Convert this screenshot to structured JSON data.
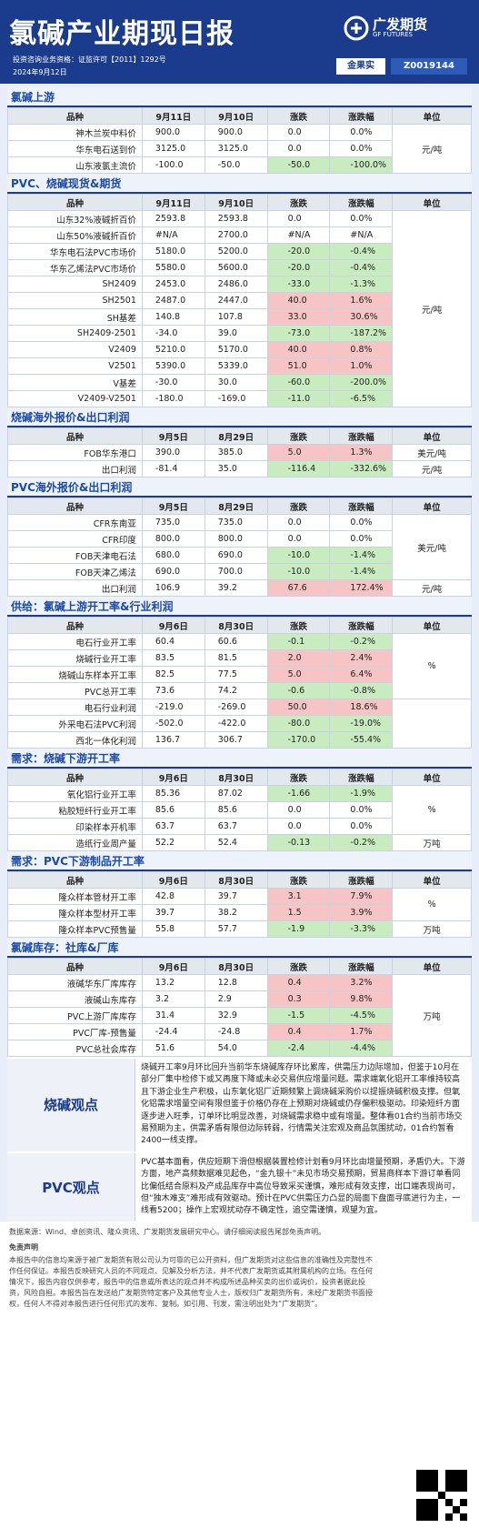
{
  "header": {
    "title": "氯碱产业期现日报",
    "logo_cn": "广发期货",
    "logo_en": "GF FUTURES",
    "license": "投资咨询业务资格：证监许可【2011】1292号",
    "date": "2024年9月12日",
    "author": "金果实",
    "cert": "Z0019144"
  },
  "sections": [
    {
      "title": "氯碱上游",
      "columns": [
        "品种",
        "9月11日",
        "9月10日",
        "涨跌",
        "涨跌幅",
        "单位"
      ],
      "rows": [
        [
          "神木兰炭中料价",
          "900.0",
          "900.0",
          "0.0",
          "0.0%"
        ],
        [
          "华东电石送到价",
          "3125.0",
          "3125.0",
          "0.0",
          "0.0%"
        ],
        [
          "山东液氯主流价",
          "-100.0",
          "-50.0",
          "-50.0",
          "-100.0%"
        ]
      ],
      "units": [
        {
          "label": "元/吨",
          "rows": 3
        }
      ]
    },
    {
      "title": "PVC、烧碱现货&期货",
      "columns": [
        "品种",
        "9月11日",
        "9月10日",
        "涨跌",
        "涨跌幅",
        "单位"
      ],
      "rows": [
        [
          "山东32%液碱折百价",
          "2593.8",
          "2593.8",
          "0.0",
          "0.0%"
        ],
        [
          "山东50%液碱折百价",
          "#N/A",
          "2700.0",
          "#N/A",
          "#N/A"
        ],
        [
          "华东电石法PVC市场价",
          "5180.0",
          "5200.0",
          "-20.0",
          "-0.4%"
        ],
        [
          "华东乙烯法PVC市场价",
          "5580.0",
          "5600.0",
          "-20.0",
          "-0.4%"
        ],
        [
          "SH2409",
          "2453.0",
          "2486.0",
          "-33.0",
          "-1.3%"
        ],
        [
          "SH2501",
          "2487.0",
          "2447.0",
          "40.0",
          "1.6%"
        ],
        [
          "SH基差",
          "140.8",
          "107.8",
          "33.0",
          "30.6%"
        ],
        [
          "SH2409-2501",
          "-34.0",
          "39.0",
          "-73.0",
          "-187.2%"
        ],
        [
          "V2409",
          "5210.0",
          "5170.0",
          "40.0",
          "0.8%"
        ],
        [
          "V2501",
          "5390.0",
          "5339.0",
          "51.0",
          "1.0%"
        ],
        [
          "V基差",
          "-30.0",
          "30.0",
          "-60.0",
          "-200.0%"
        ],
        [
          "V2409-V2501",
          "-180.0",
          "-169.0",
          "-11.0",
          "-6.5%"
        ]
      ],
      "units": [
        {
          "label": "元/吨",
          "rows": 12
        }
      ]
    },
    {
      "title": "烧碱海外报价&出口利润",
      "columns": [
        "品种",
        "9月5日",
        "8月29日",
        "涨跌",
        "涨跌幅",
        "单位"
      ],
      "rows": [
        [
          "FOB华东港口",
          "390.0",
          "385.0",
          "5.0",
          "1.3%"
        ],
        [
          "出口利润",
          "-81.4",
          "35.0",
          "-116.4",
          "-332.6%"
        ]
      ],
      "units": [
        {
          "label": "美元/吨",
          "rows": 1
        },
        {
          "label": "元/吨",
          "rows": 1
        }
      ]
    },
    {
      "title": "PVC海外报价&出口利润",
      "columns": [
        "品种",
        "9月5日",
        "8月29日",
        "涨跌",
        "涨跌幅",
        "单位"
      ],
      "rows": [
        [
          "CFR东南亚",
          "735.0",
          "735.0",
          "0.0",
          "0.0%"
        ],
        [
          "CFR印度",
          "800.0",
          "800.0",
          "0.0",
          "0.0%"
        ],
        [
          "FOB天津电石法",
          "680.0",
          "690.0",
          "-10.0",
          "-1.4%"
        ],
        [
          "FOB天津乙烯法",
          "690.0",
          "700.0",
          "-10.0",
          "-1.4%"
        ],
        [
          "出口利润",
          "106.9",
          "39.2",
          "67.6",
          "172.4%"
        ]
      ],
      "units": [
        {
          "label": "美元/吨",
          "rows": 4
        },
        {
          "label": "元/吨",
          "rows": 1
        }
      ]
    },
    {
      "title": "供给：氯碱上游开工率&行业利润",
      "columns": [
        "品种",
        "9月6日",
        "8月30日",
        "涨跌",
        "涨跌幅",
        "单位"
      ],
      "rows": [
        [
          "电石行业开工率",
          "60.4",
          "60.6",
          "-0.1",
          "-0.2%"
        ],
        [
          "烧碱行业开工率",
          "83.5",
          "81.5",
          "2.0",
          "2.4%"
        ],
        [
          "烧碱山东样本开工率",
          "82.5",
          "77.5",
          "5.0",
          "6.4%"
        ],
        [
          "PVC总开工率",
          "73.6",
          "74.2",
          "-0.6",
          "-0.8%"
        ],
        [
          "电石行业利润",
          "-219.0",
          "-269.0",
          "50.0",
          "18.6%"
        ],
        [
          "外采电石法PVC利润",
          "-502.0",
          "-422.0",
          "-80.0",
          "-19.0%"
        ],
        [
          "西北一体化利润",
          "136.7",
          "306.7",
          "-170.0",
          "-55.4%"
        ]
      ],
      "units": [
        {
          "label": "%",
          "rows": 4
        },
        {
          "rows": 3
        }
      ]
    },
    {
      "title": "需求：烧碱下游开工率",
      "columns": [
        "品种",
        "9月6日",
        "8月30日",
        "涨跌",
        "涨跌幅",
        "单位"
      ],
      "rows": [
        [
          "氧化铝行业开工率",
          "85.36",
          "87.02",
          "-1.66",
          "-1.9%"
        ],
        [
          "粘胶短纤行业开工率",
          "85.6",
          "85.6",
          "0.0",
          "0.0%"
        ],
        [
          "印染样本开机率",
          "63.7",
          "63.7",
          "0.0",
          "0.0%"
        ],
        [
          "造纸行业周产量",
          "52.2",
          "52.4",
          "-0.13",
          "-0.2%"
        ]
      ],
      "units": [
        {
          "label": "%",
          "rows": 3
        },
        {
          "label": "万吨",
          "rows": 1
        }
      ]
    },
    {
      "title": "需求：PVC下游制品开工率",
      "columns": [
        "品种",
        "9月6日",
        "8月30日",
        "涨跌",
        "涨跌幅",
        "单位"
      ],
      "rows": [
        [
          "隆众样本管材开工率",
          "42.8",
          "39.7",
          "3.1",
          "7.9%"
        ],
        [
          "隆众样本型材开工率",
          "39.7",
          "38.2",
          "1.5",
          "3.9%"
        ],
        [
          "隆众样本PVC预售量",
          "55.8",
          "57.7",
          "-1.9",
          "-3.3%"
        ]
      ],
      "units": [
        {
          "label": "%",
          "rows": 2
        },
        {
          "label": "万吨",
          "rows": 1
        }
      ]
    },
    {
      "title": "氯碱库存：社库&厂库",
      "columns": [
        "品种",
        "9月6日",
        "8月30日",
        "涨跌",
        "涨跌幅",
        "单位"
      ],
      "rows": [
        [
          "液碱华东厂库库存",
          "13.2",
          "12.8",
          "0.4",
          "3.2%"
        ],
        [
          "液碱山东库存",
          "3.2",
          "2.9",
          "0.3",
          "9.8%"
        ],
        [
          "PVC上游厂库库存",
          "31.4",
          "32.9",
          "-1.5",
          "-4.5%"
        ],
        [
          "PVC厂库-预售量",
          "-24.4",
          "-24.8",
          "0.4",
          "1.7%"
        ],
        [
          "PVC总社会库存",
          "51.6",
          "54.0",
          "-2.4",
          "-4.4%"
        ]
      ],
      "units": [
        {
          "label": "万吨",
          "rows": 5
        }
      ]
    }
  ],
  "views": [
    {
      "title": "烧碱观点",
      "text": "烧碱开工率9月环比回升当前华东烧碱库存环比累库，供需压力边际增加，但鉴于10月在部分厂集中检修下或又再度下降或未必交易供应增量问题。需求端氧化铝开工率维持较高且下游企业生产积极，山东氧化铝厂近期频繁上调烧碱采购价以提振烧碱积极支撑。但氧化铝需求增量空间有限但鉴于价格仍存在上预期对烧碱或仍存偏积极驱动。印染短纤方面逐步进入旺季，订单环比明显改善，对烧碱需求稳中或有增量。整体看01合约当前市场交易预期为主，供需矛盾有限但边际转弱，行情需关注宏观及商品氛围扰动，01合约暂看2400一线支撑。"
    },
    {
      "title": "PVC观点",
      "text": "PVC基本面看，供应短期下滑但根据装置检修计划看9月环比由增量预期，矛盾仍大。下游方面，地产高频数据难见起色，“金九银十”未见市场交易预期，贸易商样本下游订单看同比偏低结合原料及产成品库存中高位导致采买谨慎，难形成有效支撑，出口端表现尚可，但“独木难支”难形成有效驱动。预计在PVC供需压力凸显的局面下盘面寻底进行为主，一线看5200；操作上宏观扰动存不确定性，追空需谨慎，观望为宜。"
    }
  ],
  "footer": {
    "source": "数据来源：Wind、卓创资讯、隆众资讯、广发期货发展研究中心。请仔细阅读报告尾部免责声明。",
    "disclaimer_title": "免责声明",
    "disclaimer": "本报告中的信息均来源于被广发期货有限公司认为可靠的已公开资料，但广发期货对这些信息的准确性及完整性不作任何保证。本报告反映研究人员的不同观点、见解及分析方法，并不代表广发期货或其附属机构的立场。在任何情况下，报告内容仅供参考，报告中的信息或所表达的观点并不构成所述品种买卖的出价或询价，投资者据此投资，风险自担。本报告旨在发送给广发期货特定客户及其他专业人士，版权归广发期货所有，未经广发期货书面授权，任何人不得对本报告进行任何形式的发布、复制。如引用、刊发，需注明出处为“广发期货”。"
  }
}
